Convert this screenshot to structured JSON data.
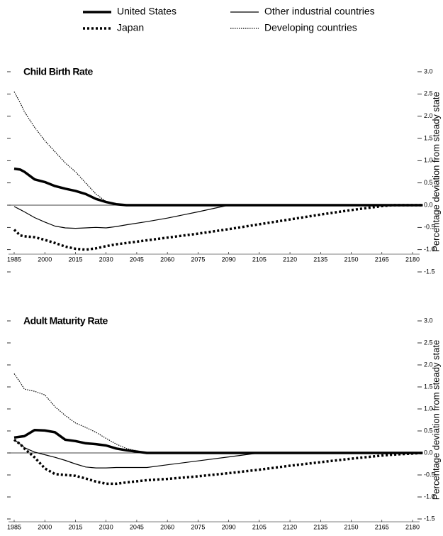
{
  "chart_data": [
    {
      "type": "line",
      "title": "Child Birth Rate",
      "ylabel": "Percentage deviation from steady state",
      "x": [
        1985,
        1988,
        1990,
        1995,
        2000,
        2005,
        2010,
        2015,
        2020,
        2025,
        2030,
        2035,
        2040,
        2050,
        2060,
        2075,
        2090,
        2105,
        2120,
        2135,
        2150,
        2165,
        2170,
        2185
      ],
      "xlim": [
        1982,
        2185
      ],
      "xticks": [
        1985,
        2000,
        2015,
        2030,
        2045,
        2060,
        2075,
        2090,
        2105,
        2120,
        2135,
        2150,
        2165,
        2180
      ],
      "ylim": [
        -1.5,
        3.0
      ],
      "yticks": [
        {
          "value": 3.0,
          "label": "3.0"
        },
        2.5,
        {
          "value": 2.0,
          "label": "2.0"
        },
        1.5,
        {
          "value": 1.0,
          "label": "1.0"
        },
        0.5,
        {
          "value": 0.0,
          "label": "0.0"
        },
        -0.5,
        {
          "value": -1.0,
          "label": "-1.0"
        },
        -1.5
      ],
      "series": [
        {
          "name": "United States",
          "color": "#000000",
          "style": "solid",
          "width": 3.5,
          "values": [
            0.82,
            0.8,
            0.75,
            0.58,
            0.52,
            0.43,
            0.37,
            0.32,
            0.25,
            0.14,
            0.07,
            0.02,
            0,
            0,
            0,
            0,
            0,
            0,
            0,
            0,
            0,
            0,
            0,
            0
          ]
        },
        {
          "name": "Japan",
          "color": "#000000",
          "style": "dotted",
          "width": 3.5,
          "values": [
            -0.55,
            -0.68,
            -0.7,
            -0.72,
            -0.78,
            -0.85,
            -0.93,
            -0.98,
            -1.0,
            -0.97,
            -0.92,
            -0.88,
            -0.85,
            -0.79,
            -0.73,
            -0.64,
            -0.54,
            -0.43,
            -0.32,
            -0.21,
            -0.11,
            -0.02,
            0,
            0
          ]
        },
        {
          "name": "Other industrial countries",
          "color": "#000000",
          "style": "solid",
          "width": 1.2,
          "values": [
            -0.03,
            -0.1,
            -0.15,
            -0.28,
            -0.38,
            -0.47,
            -0.51,
            -0.52,
            -0.51,
            -0.5,
            -0.51,
            -0.48,
            -0.44,
            -0.37,
            -0.29,
            -0.15,
            0,
            0,
            0,
            0,
            0,
            0,
            0,
            0
          ]
        },
        {
          "name": "Developing countries",
          "color": "#000000",
          "style": "dotted",
          "width": 1.2,
          "values": [
            2.55,
            2.3,
            2.1,
            1.75,
            1.45,
            1.2,
            0.95,
            0.75,
            0.5,
            0.25,
            0.08,
            0.01,
            0,
            0,
            0,
            0,
            0,
            0,
            0,
            0,
            0,
            0,
            0,
            0
          ]
        }
      ]
    },
    {
      "type": "line",
      "title": "Adult Maturity Rate",
      "ylabel": "Percentage deviation from steady state",
      "x": [
        1985,
        1988,
        1990,
        1995,
        2000,
        2005,
        2010,
        2015,
        2020,
        2025,
        2030,
        2035,
        2040,
        2050,
        2060,
        2075,
        2090,
        2105,
        2120,
        2135,
        2150,
        2165,
        2170,
        2185
      ],
      "xlim": [
        1982,
        2185
      ],
      "xticks": [
        1985,
        2000,
        2015,
        2030,
        2045,
        2060,
        2075,
        2090,
        2105,
        2120,
        2135,
        2150,
        2165,
        2180
      ],
      "ylim": [
        -1.5,
        3.0
      ],
      "yticks": [
        {
          "value": 3.0,
          "label": "3.0"
        },
        2.5,
        {
          "value": 2.0,
          "label": "2.0"
        },
        1.5,
        {
          "value": 1.0,
          "label": "1.0"
        },
        0.5,
        {
          "value": 0.0,
          "label": "0.0"
        },
        -0.5,
        {
          "value": -1.0,
          "label": "-1.0"
        },
        -1.5
      ],
      "series": [
        {
          "color": "#000000",
          "style": "solid",
          "width": 3.5,
          "values": [
            0.35,
            0.37,
            0.38,
            0.52,
            0.51,
            0.47,
            0.3,
            0.27,
            0.22,
            0.2,
            0.17,
            0.1,
            0.06,
            0,
            0,
            0,
            0,
            0,
            0,
            0,
            0,
            0,
            0,
            0
          ]
        },
        {
          "color": "#000000",
          "style": "dotted",
          "width": 3.5,
          "values": [
            0.3,
            0.2,
            0.1,
            -0.1,
            -0.35,
            -0.48,
            -0.5,
            -0.52,
            -0.58,
            -0.65,
            -0.7,
            -0.7,
            -0.67,
            -0.62,
            -0.59,
            -0.53,
            -0.46,
            -0.38,
            -0.29,
            -0.21,
            -0.13,
            -0.06,
            -0.04,
            0
          ]
        },
        {
          "color": "#000000",
          "style": "solid",
          "width": 1.2,
          "values": [
            0.3,
            0.2,
            0.12,
            0.02,
            -0.04,
            -0.1,
            -0.17,
            -0.25,
            -0.32,
            -0.34,
            -0.34,
            -0.33,
            -0.33,
            -0.33,
            -0.27,
            -0.18,
            -0.09,
            0,
            0,
            0,
            0,
            0,
            0,
            0
          ]
        },
        {
          "color": "#000000",
          "style": "dotted",
          "width": 1.2,
          "values": [
            1.8,
            1.6,
            1.45,
            1.4,
            1.32,
            1.05,
            0.85,
            0.68,
            0.58,
            0.47,
            0.33,
            0.2,
            0.1,
            0,
            0,
            0,
            0,
            0,
            0,
            0,
            0,
            0,
            0,
            0
          ]
        }
      ]
    }
  ]
}
